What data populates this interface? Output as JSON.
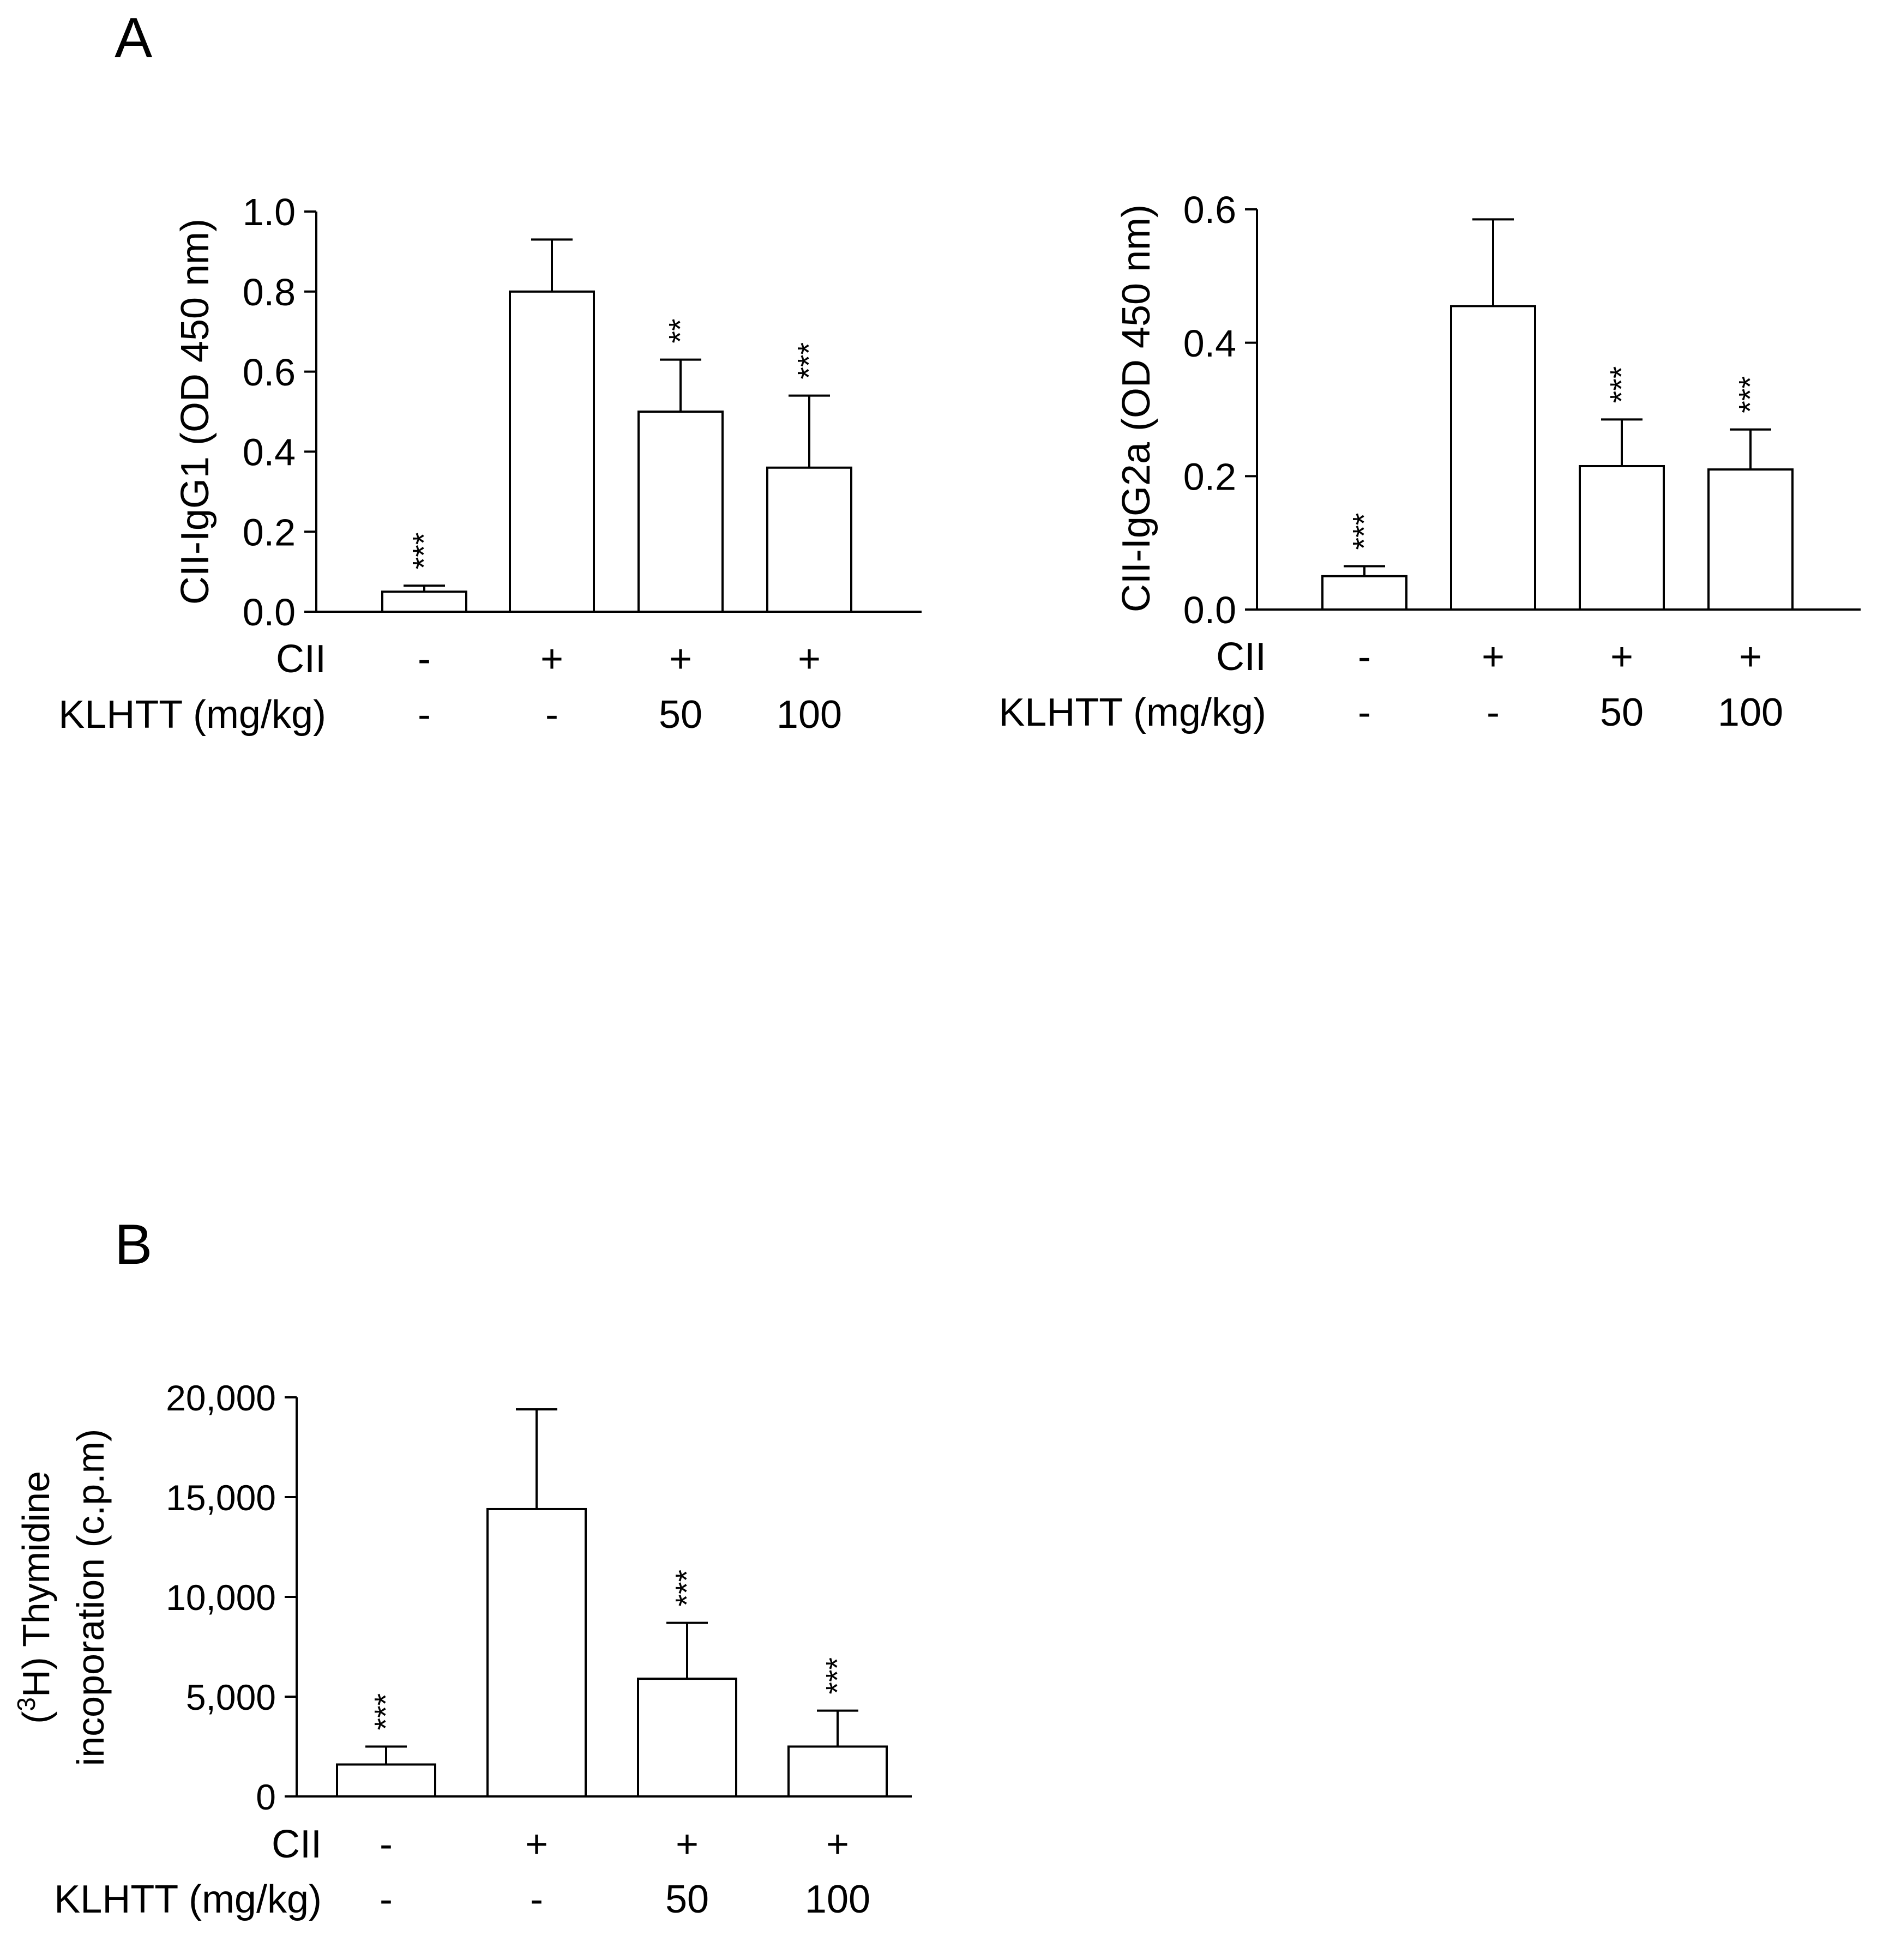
{
  "panels": {
    "A": {
      "label": "A"
    },
    "B": {
      "label": "B"
    }
  },
  "chart_data": [
    {
      "id": "A1",
      "type": "bar",
      "panel": "A",
      "title": "",
      "ylabel": "CII-IgG1 (OD 450 nm)",
      "ylim": [
        0,
        1.0
      ],
      "yticks": [
        0.0,
        0.2,
        0.4,
        0.6,
        0.8,
        1.0
      ],
      "ytick_labels": [
        "0.0",
        "0.2",
        "0.4",
        "0.6",
        "0.8",
        "1.0"
      ],
      "values": [
        0.05,
        0.8,
        0.5,
        0.36
      ],
      "errors": [
        0.015,
        0.13,
        0.13,
        0.18
      ],
      "significance": [
        "***",
        "",
        "**",
        "***"
      ],
      "row_labels": [
        "CII",
        "KLHTT (mg/kg)"
      ],
      "rows": [
        [
          "-",
          "+",
          "+",
          "+"
        ],
        [
          "-",
          "-",
          "50",
          "100"
        ]
      ]
    },
    {
      "id": "A2",
      "type": "bar",
      "panel": "A",
      "title": "",
      "ylabel": "CII-IgG2a (OD 450 nm)",
      "ylim": [
        0,
        0.6
      ],
      "yticks": [
        0.0,
        0.2,
        0.4,
        0.6
      ],
      "ytick_labels": [
        "0.0",
        "0.2",
        "0.4",
        "0.6"
      ],
      "values": [
        0.05,
        0.455,
        0.215,
        0.21
      ],
      "errors": [
        0.015,
        0.13,
        0.07,
        0.06
      ],
      "significance": [
        "***",
        "",
        "***",
        "***"
      ],
      "row_labels": [
        "CII",
        "KLHTT (mg/kg)"
      ],
      "rows": [
        [
          "-",
          "+",
          "+",
          "+"
        ],
        [
          "-",
          "-",
          "50",
          "100"
        ]
      ]
    },
    {
      "id": "B1",
      "type": "bar",
      "panel": "B",
      "title": "",
      "ylabel_sup": "3",
      "ylabel_line1_pre": "(",
      "ylabel_line1_post": "H) Thymidine",
      "ylabel_line2": "incoporation (c.p.m)",
      "ylim": [
        0,
        20000
      ],
      "yticks": [
        0,
        5000,
        10000,
        15000,
        20000
      ],
      "ytick_labels": [
        "0",
        "5,000",
        "10,000",
        "15,000",
        "20,000"
      ],
      "values": [
        1600,
        14400,
        5900,
        2500
      ],
      "errors": [
        900,
        5000,
        2800,
        1800
      ],
      "significance": [
        "***",
        "",
        "***",
        "***"
      ],
      "row_labels": [
        "CII",
        "KLHTT (mg/kg)"
      ],
      "rows": [
        [
          "-",
          "+",
          "+",
          "+"
        ],
        [
          "-",
          "-",
          "50",
          "100"
        ]
      ]
    }
  ]
}
